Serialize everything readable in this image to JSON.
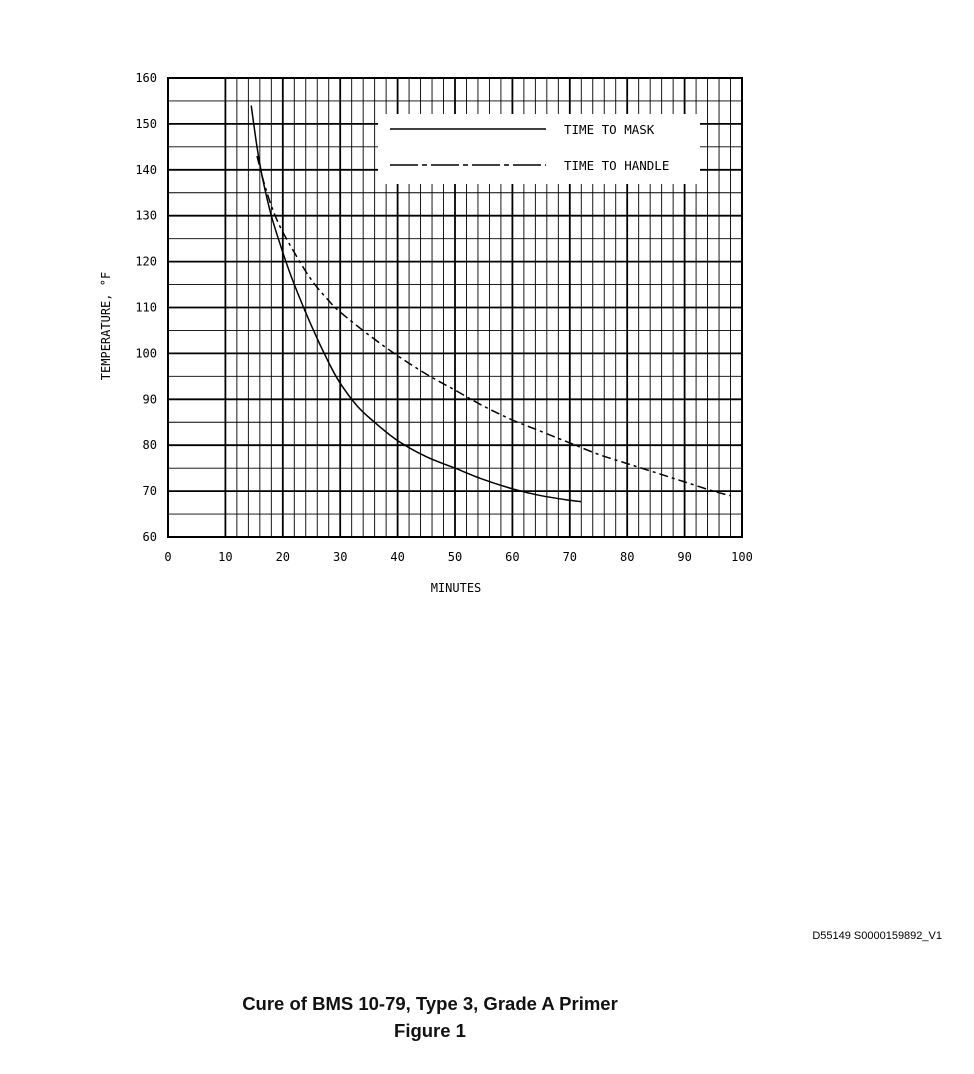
{
  "chart_data": {
    "type": "line",
    "title": "",
    "xlabel": "MINUTES",
    "ylabel": "TEMPERATURE, °F",
    "xlim": [
      0,
      100
    ],
    "ylim": [
      60,
      160
    ],
    "xticks": [
      "0",
      "10",
      "20",
      "30",
      "40",
      "50",
      "60",
      "70",
      "80",
      "90",
      "100"
    ],
    "yticks": [
      "60",
      "70",
      "80",
      "90",
      "100",
      "110",
      "120",
      "130",
      "140",
      "150",
      "160"
    ],
    "grid": true,
    "legend_position": "top-right",
    "series": [
      {
        "name": "TIME TO MASK",
        "style": "solid",
        "points": [
          [
            14.5,
            154
          ],
          [
            15.5,
            145
          ],
          [
            16.5,
            138
          ],
          [
            18,
            130
          ],
          [
            20,
            122
          ],
          [
            22,
            115
          ],
          [
            25,
            106
          ],
          [
            28,
            98
          ],
          [
            30,
            93.5
          ],
          [
            33,
            88.5
          ],
          [
            36,
            85
          ],
          [
            40,
            81
          ],
          [
            45,
            77.5
          ],
          [
            50,
            75
          ],
          [
            55,
            72.5
          ],
          [
            60,
            70.5
          ],
          [
            65,
            69
          ],
          [
            70,
            68
          ],
          [
            72,
            67.7
          ]
        ]
      },
      {
        "name": "TIME TO HANDLE",
        "style": "dash-dot",
        "points": [
          [
            15.5,
            143
          ],
          [
            17,
            136
          ],
          [
            19,
            129
          ],
          [
            22,
            122
          ],
          [
            25,
            116
          ],
          [
            28,
            111.5
          ],
          [
            30,
            109
          ],
          [
            35,
            104
          ],
          [
            40,
            99.5
          ],
          [
            45,
            95.5
          ],
          [
            50,
            92
          ],
          [
            55,
            88.5
          ],
          [
            60,
            85.5
          ],
          [
            65,
            83
          ],
          [
            70,
            80.5
          ],
          [
            75,
            78
          ],
          [
            80,
            76
          ],
          [
            85,
            74
          ],
          [
            90,
            72
          ],
          [
            95,
            70
          ],
          [
            98,
            69
          ]
        ]
      }
    ]
  },
  "doc_id": "D55149 S0000159892_V1",
  "caption": {
    "line1": "Cure of BMS 10-79, Type 3, Grade A Primer",
    "line2": "Figure 1"
  }
}
